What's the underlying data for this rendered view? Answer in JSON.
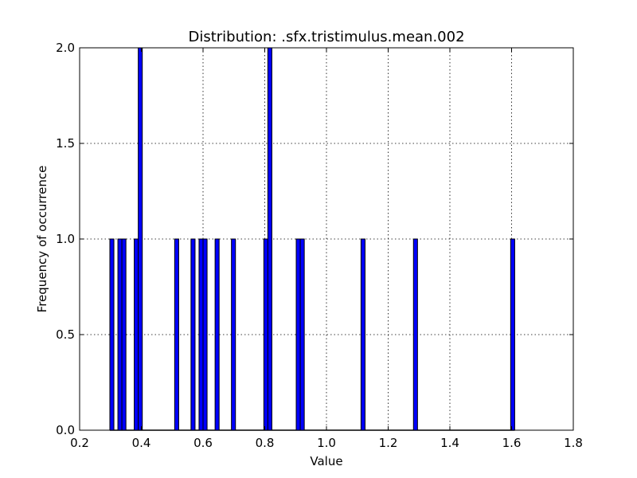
{
  "chart_data": {
    "type": "bar",
    "title": "Distribution: .sfx.tristimulus.mean.002",
    "xlabel": "Value",
    "ylabel": "Frequency of occurrence",
    "xlim": [
      0.2,
      1.8
    ],
    "ylim": [
      0.0,
      2.0
    ],
    "x_ticks": [
      "0.2",
      "0.4",
      "0.6",
      "0.8",
      "1.0",
      "1.2",
      "1.4",
      "1.6",
      "1.8"
    ],
    "y_ticks": [
      "0.0",
      "0.5",
      "1.0",
      "1.5",
      "2.0"
    ],
    "grid": true,
    "bar_color": "#0000ff",
    "bin_width": 0.0131,
    "bins": [
      {
        "x": 0.298,
        "count": 1
      },
      {
        "x": 0.324,
        "count": 1
      },
      {
        "x": 0.337,
        "count": 1
      },
      {
        "x": 0.377,
        "count": 1
      },
      {
        "x": 0.39,
        "count": 2
      },
      {
        "x": 0.508,
        "count": 1
      },
      {
        "x": 0.561,
        "count": 1
      },
      {
        "x": 0.587,
        "count": 1
      },
      {
        "x": 0.6,
        "count": 1
      },
      {
        "x": 0.639,
        "count": 1
      },
      {
        "x": 0.692,
        "count": 1
      },
      {
        "x": 0.797,
        "count": 1
      },
      {
        "x": 0.81,
        "count": 2
      },
      {
        "x": 0.902,
        "count": 1
      },
      {
        "x": 0.915,
        "count": 1
      },
      {
        "x": 1.112,
        "count": 1
      },
      {
        "x": 1.282,
        "count": 1
      },
      {
        "x": 1.597,
        "count": 1
      }
    ]
  }
}
